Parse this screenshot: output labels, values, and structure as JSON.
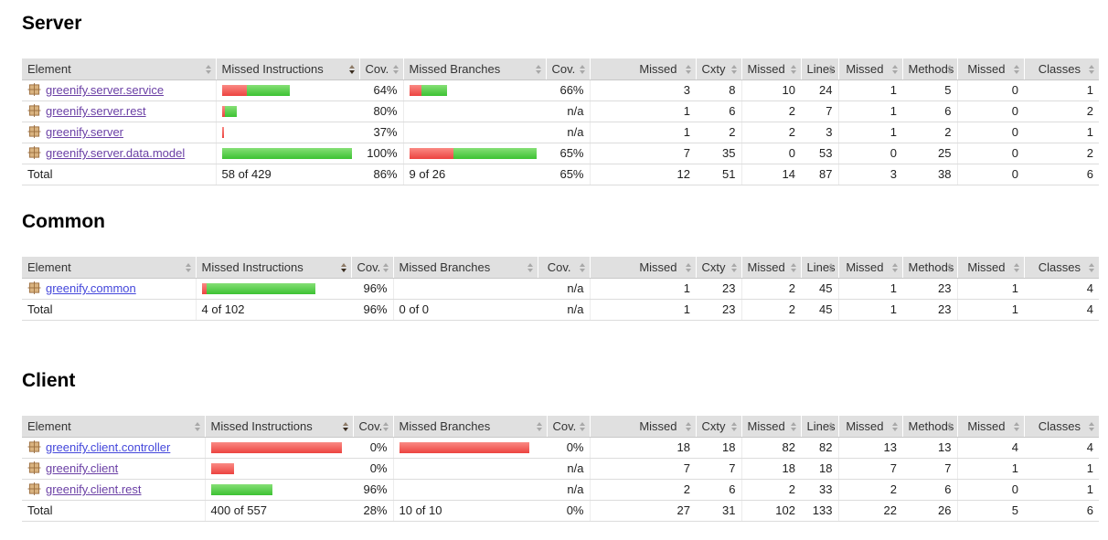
{
  "headers": [
    {
      "key": "element",
      "label": "Element",
      "type": "text",
      "sort": "both"
    },
    {
      "key": "missed-instructions",
      "label": "Missed Instructions",
      "type": "bar",
      "sort": "desc"
    },
    {
      "key": "instructions-coverage",
      "label": "Cov.",
      "type": "num",
      "sort": "both"
    },
    {
      "key": "missed-branches",
      "label": "Missed Branches",
      "type": "bar",
      "sort": "both"
    },
    {
      "key": "branches-coverage",
      "label": "Cov.",
      "type": "num",
      "sort": "both"
    },
    {
      "key": "missed-cxty",
      "label": "Missed",
      "type": "num",
      "sort": "both"
    },
    {
      "key": "cxty",
      "label": "Cxty",
      "type": "num",
      "sort": "both"
    },
    {
      "key": "missed-lines",
      "label": "Missed",
      "type": "num",
      "sort": "both"
    },
    {
      "key": "lines",
      "label": "Lines",
      "type": "num",
      "sort": "both"
    },
    {
      "key": "missed-methods",
      "label": "Missed",
      "type": "num",
      "sort": "both"
    },
    {
      "key": "methods",
      "label": "Methods",
      "type": "num",
      "sort": "both"
    },
    {
      "key": "missed-classes",
      "label": "Missed",
      "type": "num",
      "sort": "both"
    },
    {
      "key": "classes",
      "label": "Classes",
      "type": "num",
      "sort": "both"
    }
  ],
  "colors": {
    "header_bg": "#e0e0e0",
    "bar_red": "#ec4340",
    "bar_green": "#3cc233",
    "link_visited": "#6a3fa5",
    "link_unvisited": "#4447db"
  },
  "sections": [
    {
      "id": "server",
      "title": "Server",
      "rows": [
        {
          "package": "greenify.server.service",
          "visited": true,
          "missed_instructions_bar": {
            "red": 27,
            "green": 47
          },
          "instructions_cov": "64%",
          "missed_branches_bar": {
            "red": 13,
            "green": 28
          },
          "branches_cov": "66%",
          "counters": {
            "missed_cxty": "3",
            "cxty": "8",
            "missed_lines": "10",
            "lines": "24",
            "missed_methods": "1",
            "methods": "5",
            "missed_classes": "0",
            "classes": "1"
          }
        },
        {
          "package": "greenify.server.rest",
          "visited": true,
          "missed_instructions_bar": {
            "red": 3,
            "green": 13
          },
          "instructions_cov": "80%",
          "missed_branches_bar": null,
          "branches_cov": "n/a",
          "counters": {
            "missed_cxty": "1",
            "cxty": "6",
            "missed_lines": "2",
            "lines": "7",
            "missed_methods": "1",
            "methods": "6",
            "missed_classes": "0",
            "classes": "2"
          }
        },
        {
          "package": "greenify.server",
          "visited": true,
          "missed_instructions_bar": {
            "red": 2,
            "green": 0
          },
          "instructions_cov": "37%",
          "missed_branches_bar": null,
          "branches_cov": "n/a",
          "counters": {
            "missed_cxty": "1",
            "cxty": "2",
            "missed_lines": "2",
            "lines": "3",
            "missed_methods": "1",
            "methods": "2",
            "missed_classes": "0",
            "classes": "1"
          }
        },
        {
          "package": "greenify.server.data.model",
          "visited": true,
          "missed_instructions_bar": {
            "red": 0,
            "green": 142
          },
          "instructions_cov": "100%",
          "missed_branches_bar": {
            "red": 48,
            "green": 91
          },
          "branches_cov": "65%",
          "counters": {
            "missed_cxty": "7",
            "cxty": "35",
            "missed_lines": "0",
            "lines": "53",
            "missed_methods": "0",
            "methods": "25",
            "missed_classes": "0",
            "classes": "2"
          }
        }
      ],
      "total": {
        "label": "Total",
        "missed_instructions": "58 of 429",
        "instructions_cov": "86%",
        "missed_branches": "9 of 26",
        "branches_cov": "65%",
        "counters": {
          "missed_cxty": "12",
          "cxty": "51",
          "missed_lines": "14",
          "lines": "87",
          "missed_methods": "3",
          "methods": "38",
          "missed_classes": "0",
          "classes": "6"
        }
      }
    },
    {
      "id": "common",
      "title": "Common",
      "rows": [
        {
          "package": "greenify.common",
          "visited": false,
          "missed_instructions_bar": {
            "red": 5,
            "green": 119
          },
          "instructions_cov": "96%",
          "missed_branches_bar": null,
          "branches_cov": "n/a",
          "counters": {
            "missed_cxty": "1",
            "cxty": "23",
            "missed_lines": "2",
            "lines": "45",
            "missed_methods": "1",
            "methods": "23",
            "missed_classes": "1",
            "classes": "4"
          }
        }
      ],
      "total": {
        "label": "Total",
        "missed_instructions": "4 of 102",
        "instructions_cov": "96%",
        "missed_branches": "0 of 0",
        "branches_cov": "n/a",
        "counters": {
          "missed_cxty": "1",
          "cxty": "23",
          "missed_lines": "2",
          "lines": "45",
          "missed_methods": "1",
          "methods": "23",
          "missed_classes": "1",
          "classes": "4"
        }
      }
    },
    {
      "id": "client",
      "title": "Client",
      "rows": [
        {
          "package": "greenify.client.controller",
          "visited": false,
          "missed_instructions_bar": {
            "red": 143,
            "green": 0
          },
          "instructions_cov": "0%",
          "missed_branches_bar": {
            "red": 142,
            "green": 0
          },
          "branches_cov": "0%",
          "counters": {
            "missed_cxty": "18",
            "cxty": "18",
            "missed_lines": "82",
            "lines": "82",
            "missed_methods": "13",
            "methods": "13",
            "missed_classes": "4",
            "classes": "4"
          }
        },
        {
          "package": "greenify.client",
          "visited": true,
          "missed_instructions_bar": {
            "red": 25,
            "green": 0
          },
          "instructions_cov": "0%",
          "missed_branches_bar": null,
          "branches_cov": "n/a",
          "counters": {
            "missed_cxty": "7",
            "cxty": "7",
            "missed_lines": "18",
            "lines": "18",
            "missed_methods": "7",
            "methods": "7",
            "missed_classes": "1",
            "classes": "1"
          }
        },
        {
          "package": "greenify.client.rest",
          "visited": true,
          "missed_instructions_bar": {
            "red": 0,
            "green": 67
          },
          "instructions_cov": "96%",
          "missed_branches_bar": null,
          "branches_cov": "n/a",
          "counters": {
            "missed_cxty": "2",
            "cxty": "6",
            "missed_lines": "2",
            "lines": "33",
            "missed_methods": "2",
            "methods": "6",
            "missed_classes": "0",
            "classes": "1"
          }
        }
      ],
      "total": {
        "label": "Total",
        "missed_instructions": "400 of 557",
        "instructions_cov": "28%",
        "missed_branches": "10 of 10",
        "branches_cov": "0%",
        "counters": {
          "missed_cxty": "27",
          "cxty": "31",
          "missed_lines": "102",
          "lines": "133",
          "missed_methods": "22",
          "methods": "26",
          "missed_classes": "5",
          "classes": "6"
        }
      }
    }
  ]
}
